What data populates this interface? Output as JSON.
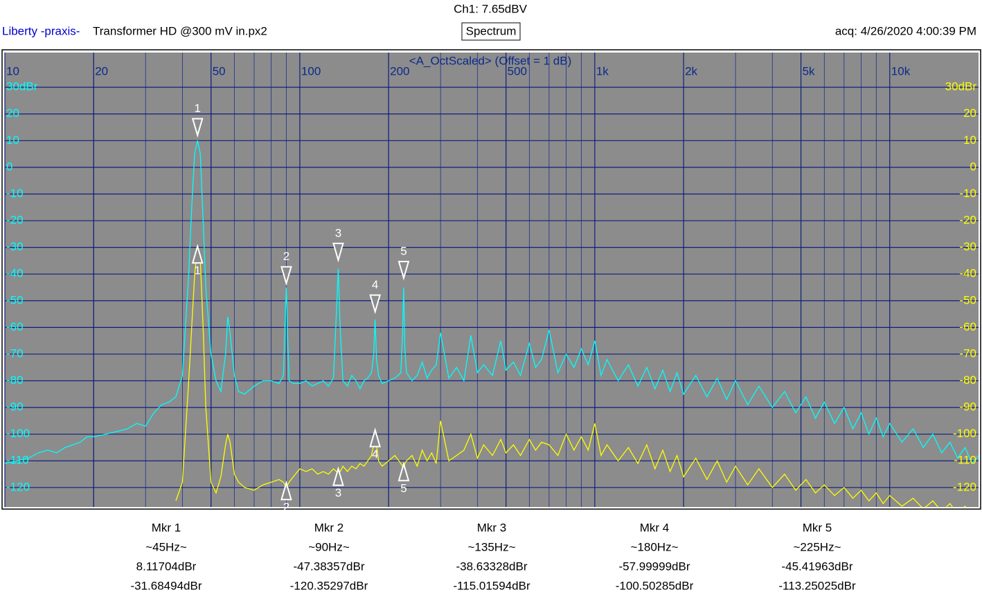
{
  "header": {
    "channel": "Ch1: 7.65dBV",
    "brand": "Liberty -praxis-",
    "file": "Transformer HD @300 mV in.px2",
    "mode": "Spectrum",
    "acquired": "acq: 4/26/2020 4:00:39 PM"
  },
  "chart_data": {
    "type": "line",
    "title": "<A_OctScaled> (Offset = 1 dB)",
    "log_x": true,
    "grid": true,
    "minor_grid": true,
    "xlim": [
      10,
      20000
    ],
    "xticks": [
      10,
      20,
      50,
      100,
      200,
      500,
      {
        "value": 1000,
        "label": "1k"
      },
      {
        "value": 2000,
        "label": "2k"
      },
      {
        "value": 5000,
        "label": "5k"
      },
      {
        "value": 10000,
        "label": "10k"
      }
    ],
    "ylim": [
      -127.3,
      43
    ],
    "yticks": [
      {
        "value": 30,
        "label": "30dBr"
      },
      20,
      10,
      0,
      -10,
      -20,
      -30,
      -40,
      -50,
      -60,
      -70,
      -80,
      -90,
      -100,
      -110,
      -120
    ],
    "y2lim": [
      -127.3,
      43
    ],
    "y2ticks": [
      {
        "value": 30,
        "label": "30dBr"
      },
      20,
      10,
      0,
      -10,
      -20,
      -30,
      -40,
      -50,
      -60,
      -70,
      -80,
      -90,
      -100,
      -110,
      -120
    ],
    "x": [
      10,
      11,
      12,
      13,
      14,
      15,
      16,
      17,
      18,
      19,
      20,
      22,
      24,
      26,
      28,
      30,
      32,
      34,
      36,
      38,
      40,
      42,
      43,
      44,
      45,
      46,
      47,
      48,
      50,
      52,
      54,
      56,
      57,
      58,
      60,
      62,
      65,
      70,
      75,
      80,
      85,
      88,
      89,
      90,
      91,
      92,
      95,
      100,
      105,
      110,
      115,
      120,
      125,
      130,
      133,
      135,
      137,
      140,
      145,
      150,
      155,
      160,
      165,
      170,
      175,
      178,
      180,
      182,
      185,
      190,
      200,
      210,
      220,
      223,
      225,
      227,
      230,
      240,
      250,
      260,
      270,
      280,
      290,
      300,
      320,
      340,
      360,
      380,
      400,
      420,
      450,
      480,
      500,
      530,
      560,
      600,
      630,
      660,
      700,
      750,
      800,
      850,
      900,
      950,
      1000,
      1050,
      1100,
      1200,
      1300,
      1400,
      1500,
      1600,
      1700,
      1800,
      1900,
      2000,
      2200,
      2400,
      2600,
      2800,
      3000,
      3300,
      3600,
      4000,
      4400,
      4800,
      5200,
      5600,
      6000,
      6500,
      7000,
      7500,
      8000,
      8500,
      9000,
      9500,
      10000,
      11000,
      12000,
      13000,
      14000,
      15000,
      16000,
      17000,
      18000,
      19000,
      20000
    ],
    "series": [
      {
        "color": "#00ffff",
        "axis": "y",
        "values": [
          -111,
          -110,
          -109,
          -107,
          -106,
          -107,
          -105,
          -104,
          -103,
          -101,
          -101,
          -100,
          -99,
          -98,
          -96,
          -97,
          -92,
          -89,
          -88,
          -86,
          -78,
          -40,
          -15,
          5,
          10,
          5,
          -20,
          -45,
          -70,
          -80,
          -84,
          -70,
          -56,
          -62,
          -78,
          -84,
          -85,
          -82,
          -80,
          -80,
          -81,
          -78,
          -60,
          -45,
          -65,
          -80,
          -81,
          -81,
          -80,
          -82,
          -81,
          -80,
          -82,
          -79,
          -55,
          -38,
          -60,
          -80,
          -82,
          -78,
          -80,
          -83,
          -80,
          -79,
          -77,
          -70,
          -57,
          -72,
          -78,
          -81,
          -80,
          -79,
          -77,
          -62,
          -45,
          -68,
          -77,
          -80,
          -78,
          -73,
          -79,
          -76,
          -74,
          -62,
          -79,
          -75,
          -80,
          -63,
          -77,
          -74,
          -78,
          -65,
          -76,
          -73,
          -78,
          -66,
          -75,
          -72,
          -61,
          -77,
          -70,
          -75,
          -68,
          -74,
          -65,
          -78,
          -72,
          -80,
          -74,
          -82,
          -75,
          -83,
          -76,
          -84,
          -77,
          -85,
          -78,
          -86,
          -79,
          -87,
          -80,
          -89,
          -82,
          -90,
          -84,
          -92,
          -86,
          -94,
          -88,
          -96,
          -90,
          -98,
          -92,
          -100,
          -94,
          -101,
          -96,
          -103,
          -98,
          -105,
          -100,
          -107,
          -103,
          -109,
          -105,
          -111,
          -108
        ]
      },
      {
        "color": "#ffff00",
        "axis": "y2",
        "values": [
          null,
          null,
          null,
          null,
          null,
          null,
          null,
          null,
          null,
          null,
          null,
          null,
          null,
          null,
          null,
          null,
          null,
          null,
          null,
          -125,
          -118,
          -80,
          -60,
          -40,
          -30,
          -35,
          -60,
          -90,
          -118,
          -122,
          -116,
          -104,
          -100,
          -103,
          -115,
          -118,
          -120,
          -121,
          -119,
          -118,
          -117,
          -118,
          -119,
          -119,
          -119,
          -118,
          -116,
          -113,
          -114,
          -113,
          -115,
          -114,
          -115,
          -113,
          -114,
          -115,
          -114,
          -112,
          -114,
          -112,
          -113,
          -111,
          -112,
          -110,
          -108,
          -104,
          -100,
          -104,
          -110,
          -112,
          -110,
          -108,
          -111,
          -112,
          -113,
          -111,
          -110,
          -108,
          -112,
          -106,
          -110,
          -107,
          -111,
          -95,
          -110,
          -108,
          -106,
          -100,
          -109,
          -104,
          -108,
          -102,
          -107,
          -104,
          -108,
          -102,
          -106,
          -103,
          -104,
          -108,
          -100,
          -106,
          -101,
          -106,
          -96,
          -108,
          -104,
          -110,
          -105,
          -111,
          -104,
          -113,
          -106,
          -114,
          -108,
          -116,
          -109,
          -117,
          -110,
          -118,
          -112,
          -119,
          -113,
          -120,
          -115,
          -121,
          -117,
          -122,
          -119,
          -123,
          -120,
          -124,
          -121,
          -125,
          -122,
          -126,
          -123,
          -127,
          -124,
          -128,
          -125,
          -129,
          -126,
          -130,
          -127,
          -131,
          -128
        ]
      }
    ],
    "markers": [
      {
        "id": "1",
        "name": "Mkr 1",
        "freq": 45,
        "freq_label": "~45Hz~",
        "values": [
          8.11704,
          -31.68494
        ],
        "value_labels": [
          "8.11704dBr",
          "-31.68494dBr"
        ]
      },
      {
        "id": "2",
        "name": "Mkr 2",
        "freq": 90,
        "freq_label": "~90Hz~",
        "values": [
          -47.38357,
          -120.35297
        ],
        "value_labels": [
          "-47.38357dBr",
          "-120.35297dBr"
        ]
      },
      {
        "id": "3",
        "name": "Mkr 3",
        "freq": 135,
        "freq_label": "~135Hz~",
        "values": [
          -38.63328,
          -115.01594
        ],
        "value_labels": [
          "-38.63328dBr",
          "-115.01594dBr"
        ]
      },
      {
        "id": "4",
        "name": "Mkr 4",
        "freq": 180,
        "freq_label": "~180Hz~",
        "values": [
          -57.99999,
          -100.50285
        ],
        "value_labels": [
          "-57.99999dBr",
          "-100.50285dBr"
        ]
      },
      {
        "id": "5",
        "name": "Mkr 5",
        "freq": 225,
        "freq_label": "~225Hz~",
        "values": [
          -45.41963,
          -113.25025
        ],
        "value_labels": [
          "-45.41963dBr",
          "-113.25025dBr"
        ]
      }
    ]
  }
}
